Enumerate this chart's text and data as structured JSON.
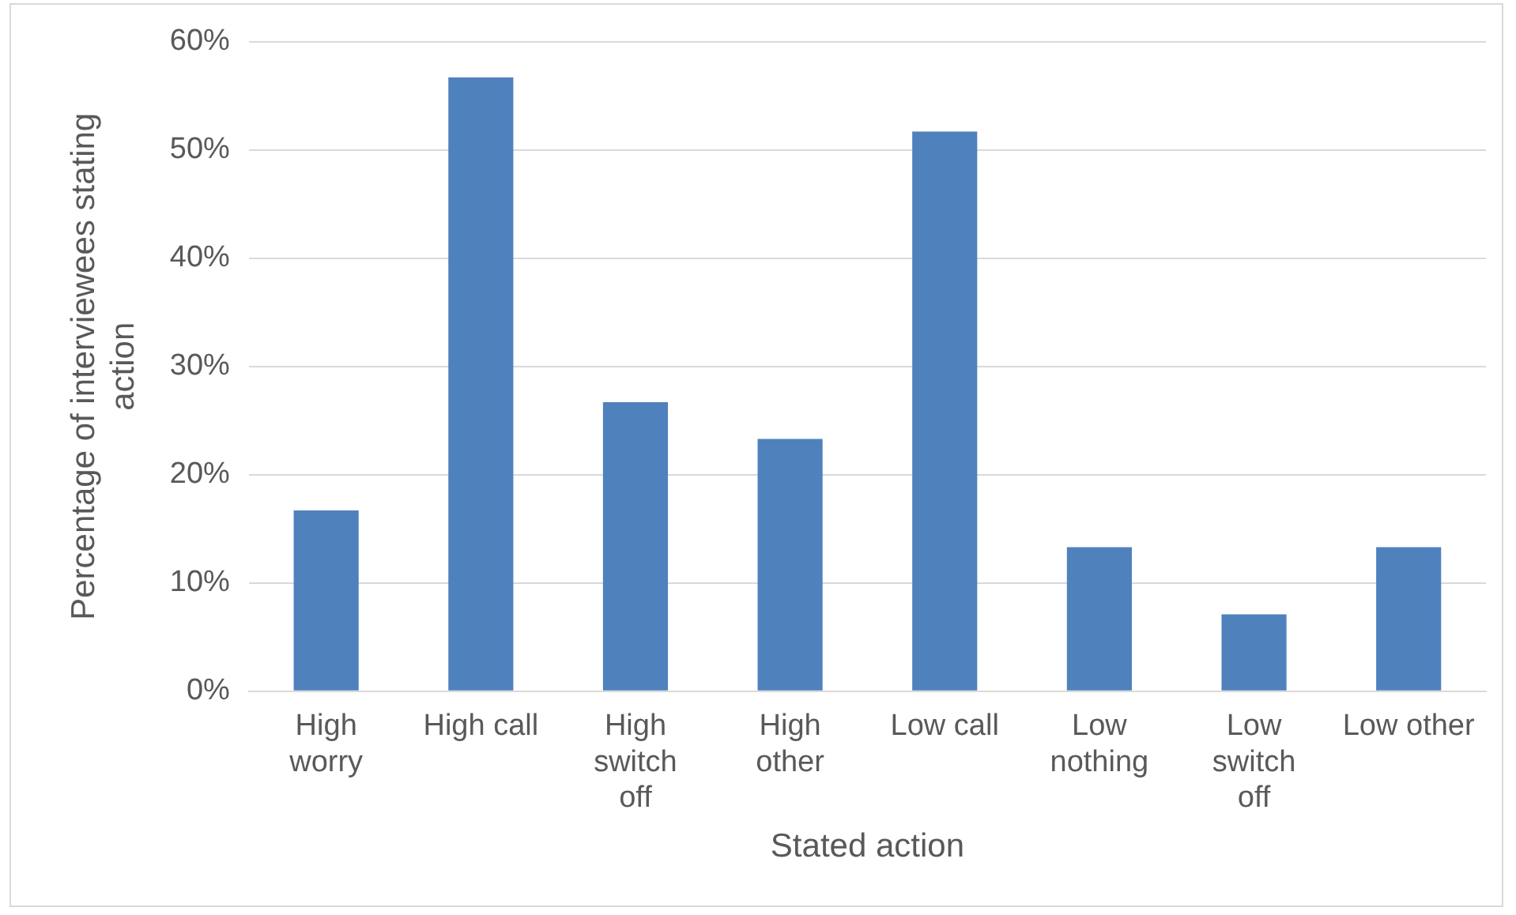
{
  "chart_data": {
    "type": "bar",
    "xlabel": "Stated action",
    "ylabel": "Percentage of interviewees stating action",
    "categories": [
      "High worry",
      "High call",
      "High switch off",
      "High other",
      "Low call",
      "Low nothing",
      "Low switch off",
      "Low other"
    ],
    "values": [
      16.7,
      56.7,
      26.7,
      23.3,
      51.7,
      13.3,
      7.1,
      13.3
    ],
    "color": "#4f81bd",
    "ylim": [
      0,
      60
    ],
    "yticks": [
      {
        "value": 0,
        "label": "0%"
      },
      {
        "value": 10,
        "label": "10%"
      },
      {
        "value": 20,
        "label": "20%"
      },
      {
        "value": 30,
        "label": "30%"
      },
      {
        "value": 40,
        "label": "40%"
      },
      {
        "value": 50,
        "label": "50%"
      },
      {
        "value": 60,
        "label": "60%"
      }
    ],
    "grid": "y"
  }
}
